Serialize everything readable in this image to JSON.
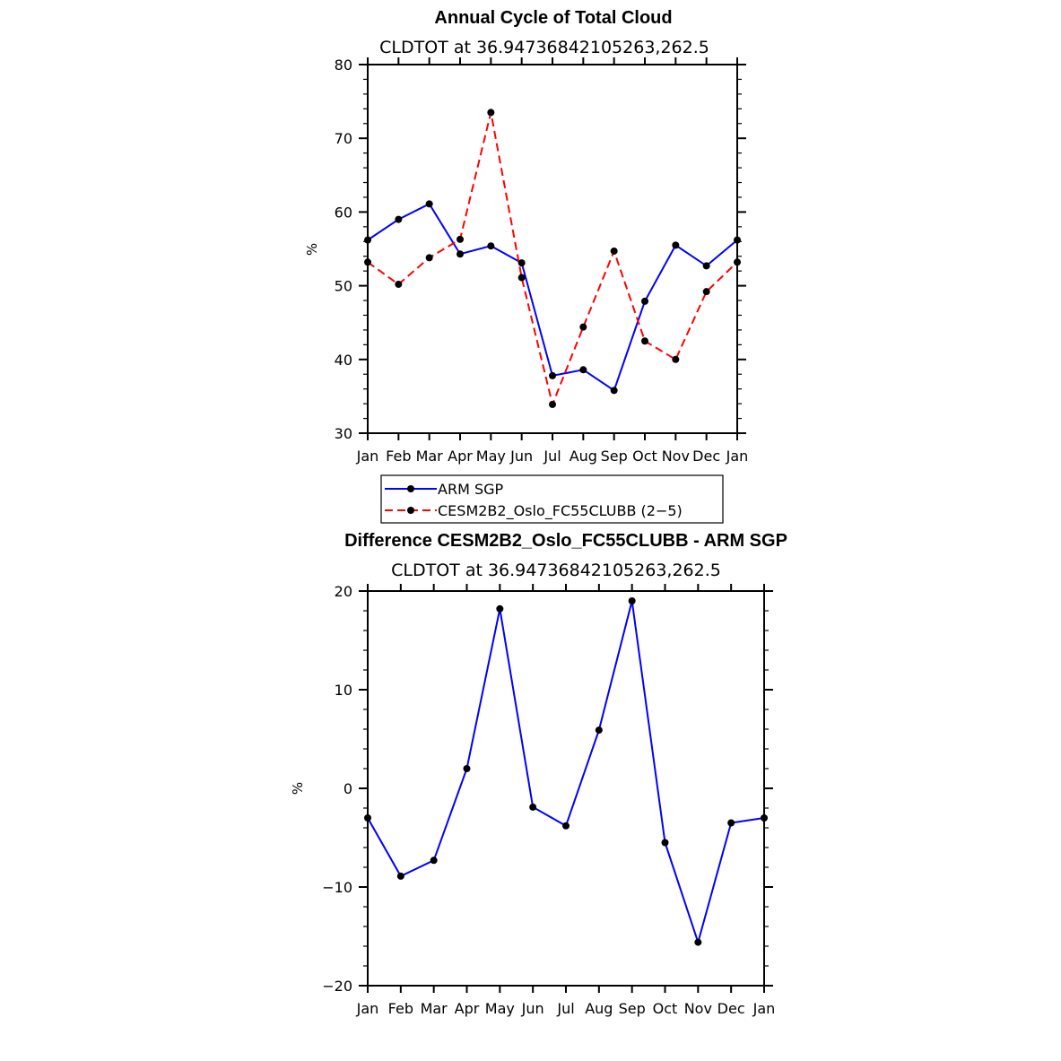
{
  "chart_data": [
    {
      "type": "line",
      "title": "Annual Cycle of Total Cloud",
      "subtitle": "CLDTOT at 36.94736842105263,262.5",
      "xlabel": "",
      "ylabel": "%",
      "categories": [
        "Jan",
        "Feb",
        "Mar",
        "Apr",
        "May",
        "Jun",
        "Jul",
        "Aug",
        "Sep",
        "Oct",
        "Nov",
        "Dec",
        "Jan"
      ],
      "ylim": [
        30,
        80
      ],
      "yticks": [
        30,
        40,
        50,
        60,
        70,
        80
      ],
      "series": [
        {
          "name": "ARM SGP",
          "color": "#0000ff",
          "dash": "solid",
          "values": [
            56.2,
            59.0,
            61.1,
            54.3,
            55.4,
            53.1,
            37.8,
            38.6,
            35.8,
            47.9,
            55.5,
            52.7,
            56.2
          ]
        },
        {
          "name": "CESM2B2_Oslo_FC55CLUBB (2−5)",
          "color": "#ff0000",
          "dash": "dashed",
          "values": [
            53.2,
            50.2,
            53.8,
            56.3,
            73.5,
            51.1,
            33.9,
            44.4,
            54.7,
            42.5,
            40.0,
            49.2,
            53.2
          ]
        }
      ],
      "legend": {
        "placement": "below",
        "items": [
          "ARM SGP",
          "CESM2B2_Oslo_FC55CLUBB (2−5)"
        ]
      }
    },
    {
      "type": "line",
      "title": "Difference CESM2B2_Oslo_FC55CLUBB - ARM SGP",
      "subtitle": "CLDTOT at 36.94736842105263,262.5",
      "xlabel": "",
      "ylabel": "%",
      "categories": [
        "Jan",
        "Feb",
        "Mar",
        "Apr",
        "May",
        "Jun",
        "Jul",
        "Aug",
        "Sep",
        "Oct",
        "Nov",
        "Dec",
        "Jan"
      ],
      "ylim": [
        -20,
        20
      ],
      "yticks": [
        -20,
        -10,
        0,
        10,
        20
      ],
      "ytick_labels": [
        "−20",
        "−10",
        "0",
        "10",
        "20"
      ],
      "series": [
        {
          "name": "Difference",
          "color": "#0000ff",
          "dash": "solid",
          "values": [
            -3.0,
            -8.9,
            -7.3,
            2.0,
            18.2,
            -1.9,
            -3.8,
            5.9,
            19.0,
            -5.5,
            -15.6,
            -3.5,
            -3.0
          ]
        }
      ]
    }
  ]
}
